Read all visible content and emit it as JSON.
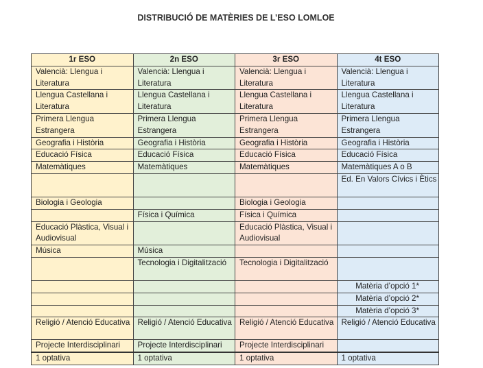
{
  "title": "DISTRIBUCIÓ DE MATÈRIES DE L’ESO LOMLOE",
  "colors": {
    "col1": "#fff2cc",
    "col2": "#e2efda",
    "col3": "#fce4d6",
    "col4": "#ddebf7"
  },
  "headers": [
    "1r ESO",
    "2n ESO",
    "3r ESO",
    "4t ESO"
  ],
  "rows": [
    [
      "Valencià: Llengua i Literatura",
      "Valencià: Llengua i Literatura",
      "Valencià: Llengua i Literatura",
      "Valencià: Llengua i Literatura"
    ],
    [
      "Llengua Castellana i Literatura",
      "Llengua Castellana i Literatura",
      "Llengua Castellana i Literatura",
      "Llengua Castellana i Literatura"
    ],
    [
      "Primera Llengua Estrangera",
      "Primera Llengua Estrangera",
      "Primera Llengua Estrangera",
      "Primera Llengua Estrangera"
    ],
    [
      "Geografia i Història",
      "Geografia i Història",
      "Geografia i Història",
      "Geografia i Història"
    ],
    [
      "Educació Física",
      "Educació Física",
      "Educació Física",
      "Educació Física"
    ],
    [
      "Matemàtiques",
      "Matemàtiques",
      "Matemàtiques",
      "Matemàtiques A o B"
    ],
    [
      "",
      "",
      "",
      "Ed. En Valors Cívics i Ètics"
    ],
    [
      "Biologia i Geologia",
      "",
      "Biologia i Geologia",
      ""
    ],
    [
      "",
      "Física i Química",
      "Física i Química",
      ""
    ],
    [
      "Educació Plàstica, Visual i Audiovisual",
      "",
      "Educació Plàstica, Visual i Audiovisual",
      ""
    ],
    [
      "Música",
      "Música",
      "",
      ""
    ],
    [
      "",
      "Tecnologia i Digitalització",
      "Tecnologia i Digitalització",
      ""
    ],
    [
      "",
      "",
      "",
      "Matèria d’opció 1*"
    ],
    [
      "",
      "",
      "",
      "Matèria d’opció 2*"
    ],
    [
      "",
      "",
      "",
      "Matèria d’opció 3*"
    ],
    [
      "Religió / Atenció Educativa",
      "Religió / Atenció Educativa",
      "Religió / Atenció Educativa",
      "Religió / Atenció Educativa"
    ],
    [
      "Projecte Interdisciplinari",
      "Projecte Interdisciplinari",
      "Projecte Interdisciplinari",
      ""
    ],
    [
      "1 optativa",
      "1 optativa",
      "1 optativa",
      "1 optativa"
    ]
  ]
}
